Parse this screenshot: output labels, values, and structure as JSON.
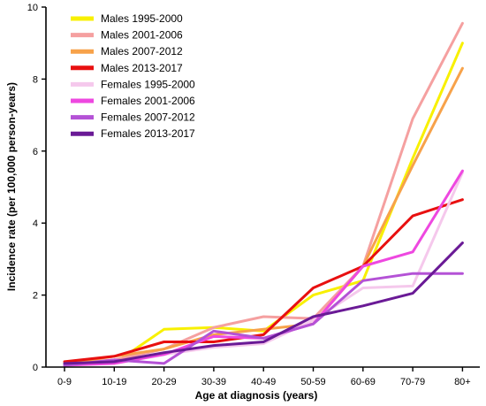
{
  "chart_data": {
    "type": "line",
    "xlabel": "Age at diagnosis (years)",
    "ylabel": "Incidence rate (per 100,000 person-years)",
    "categories": [
      "0-9",
      "10-19",
      "20-29",
      "30-39",
      "40-49",
      "50-59",
      "60-69",
      "70-79",
      "80+"
    ],
    "ylim": [
      0,
      10
    ],
    "yticks": [
      0,
      2,
      4,
      6,
      8,
      10
    ],
    "grid": false,
    "legend_position": "top-left",
    "series": [
      {
        "name": "Males 1995-2000",
        "color": "#f8f000",
        "values": [
          0.1,
          0.1,
          1.05,
          1.1,
          1.0,
          2.0,
          2.4,
          5.8,
          9.0
        ]
      },
      {
        "name": "Males 2001-2006",
        "color": "#f5a0a0",
        "values": [
          0.1,
          0.2,
          0.5,
          1.1,
          1.4,
          1.35,
          2.8,
          6.9,
          9.55
        ]
      },
      {
        "name": "Males 2007-2012",
        "color": "#f7a24a",
        "values": [
          0.1,
          0.3,
          0.5,
          0.9,
          1.05,
          1.2,
          2.8,
          5.6,
          8.3
        ]
      },
      {
        "name": "Males 2013-2017",
        "color": "#e81010",
        "values": [
          0.15,
          0.3,
          0.7,
          0.7,
          0.9,
          2.2,
          2.8,
          4.2,
          4.65
        ]
      },
      {
        "name": "Females 1995-2000",
        "color": "#f5c8ec",
        "values": [
          0.05,
          0.15,
          0.35,
          0.55,
          0.65,
          1.3,
          2.2,
          2.25,
          5.4
        ]
      },
      {
        "name": "Females 2001-2006",
        "color": "#ee48e0",
        "values": [
          0.05,
          0.1,
          0.35,
          0.85,
          0.8,
          1.2,
          2.8,
          3.2,
          5.45
        ]
      },
      {
        "name": "Females 2007-2012",
        "color": "#b452d6",
        "values": [
          0.05,
          0.2,
          0.1,
          1.0,
          0.8,
          1.2,
          2.4,
          2.6,
          2.6
        ]
      },
      {
        "name": "Females 2013-2017",
        "color": "#6a1a96",
        "values": [
          0.1,
          0.15,
          0.4,
          0.6,
          0.7,
          1.4,
          1.7,
          2.05,
          3.45
        ]
      }
    ]
  }
}
